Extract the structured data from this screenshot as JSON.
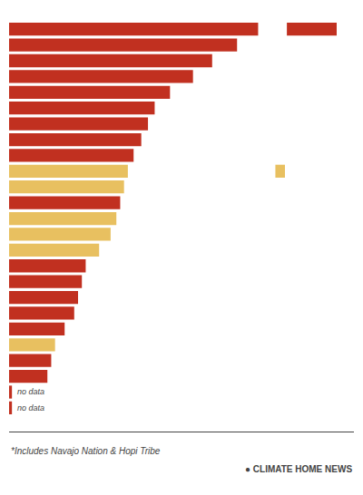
{
  "chart_data": {
    "type": "bar",
    "orientation": "horizontal",
    "categories": [
      null,
      null,
      null,
      null,
      null,
      null,
      null,
      null,
      null,
      null,
      null,
      null,
      null,
      null,
      null,
      null,
      null,
      null,
      null,
      null,
      null,
      null,
      null,
      null,
      null
    ],
    "series": [
      {
        "values": [
          260,
          238,
          212,
          192,
          168,
          152,
          145,
          138,
          130,
          124,
          120,
          116,
          112,
          106,
          94,
          80,
          76,
          72,
          68,
          58,
          48,
          44,
          40,
          3,
          3
        ],
        "colors": [
          "#C13020",
          "#C13020",
          "#C13020",
          "#C13020",
          "#C13020",
          "#C13020",
          "#C13020",
          "#C13020",
          "#C13020",
          "#E8C060",
          "#E8C060",
          "#C13020",
          "#E8C060",
          "#E8C060",
          "#E8C060",
          "#C13020",
          "#C13020",
          "#C13020",
          "#C13020",
          "#C13020",
          "#E8C060",
          "#C13020",
          "#C13020",
          "#C13020",
          "#C13020"
        ]
      },
      {
        "values": [
          52,
          null,
          null,
          null,
          null,
          null,
          null,
          null,
          null,
          null,
          null,
          null,
          null,
          null,
          null,
          null,
          null,
          null,
          null,
          null,
          null,
          null,
          null,
          null,
          null
        ],
        "base": [
          290,
          null,
          null,
          null,
          null,
          null,
          null,
          null,
          null,
          null,
          null,
          null,
          null,
          null,
          null,
          null,
          null,
          null,
          null,
          null,
          null,
          null,
          null,
          null,
          null
        ],
        "color": "#C13020"
      },
      {
        "values": [
          null,
          null,
          null,
          null,
          null,
          null,
          null,
          null,
          null,
          10,
          null,
          null,
          null,
          null,
          null,
          null,
          null,
          null,
          null,
          null,
          null,
          null,
          null,
          null,
          null
        ],
        "base": [
          null,
          null,
          null,
          null,
          null,
          null,
          null,
          null,
          null,
          278,
          null,
          null,
          null,
          null,
          null,
          null,
          null,
          null,
          null,
          null,
          null,
          null,
          null,
          null,
          null
        ],
        "color": "#E8C060"
      }
    ],
    "annotations": [
      {
        "text": "no data",
        "index": 23
      },
      {
        "text": "no data",
        "index": 24
      }
    ],
    "footnote": "*Includes Navajo Nation & Hopi Tribe",
    "source": "● CLIMATE HOME NEWS",
    "xlim": [
      0,
      360
    ],
    "xticks": [],
    "tick_labels": false,
    "grid": false
  }
}
